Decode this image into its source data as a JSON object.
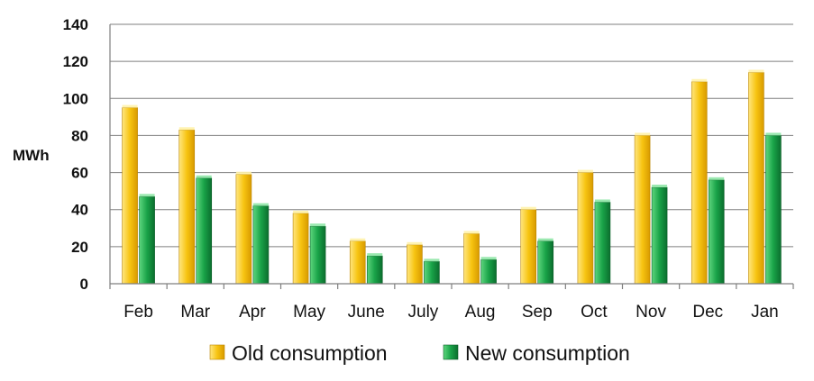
{
  "chart_data": {
    "type": "bar",
    "ylabel": "MWh",
    "ylim": [
      0,
      140
    ],
    "yticks": [
      0,
      20,
      40,
      60,
      80,
      100,
      120,
      140
    ],
    "grid": true,
    "legend_position": "bottom",
    "categories": [
      "Feb",
      "Mar",
      "Apr",
      "May",
      "June",
      "July",
      "Aug",
      "Sep",
      "Oct",
      "Nov",
      "Dec",
      "Jan"
    ],
    "series": [
      {
        "name": "Old consumption",
        "color": "#F2B705",
        "values": [
          95,
          83,
          59,
          38,
          23,
          21,
          27,
          40,
          60,
          80,
          109,
          114
        ]
      },
      {
        "name": "New consumption",
        "color": "#1E9E4A",
        "values": [
          47,
          57,
          42,
          31,
          15,
          12,
          13,
          23,
          44,
          52,
          56,
          80
        ]
      }
    ]
  }
}
